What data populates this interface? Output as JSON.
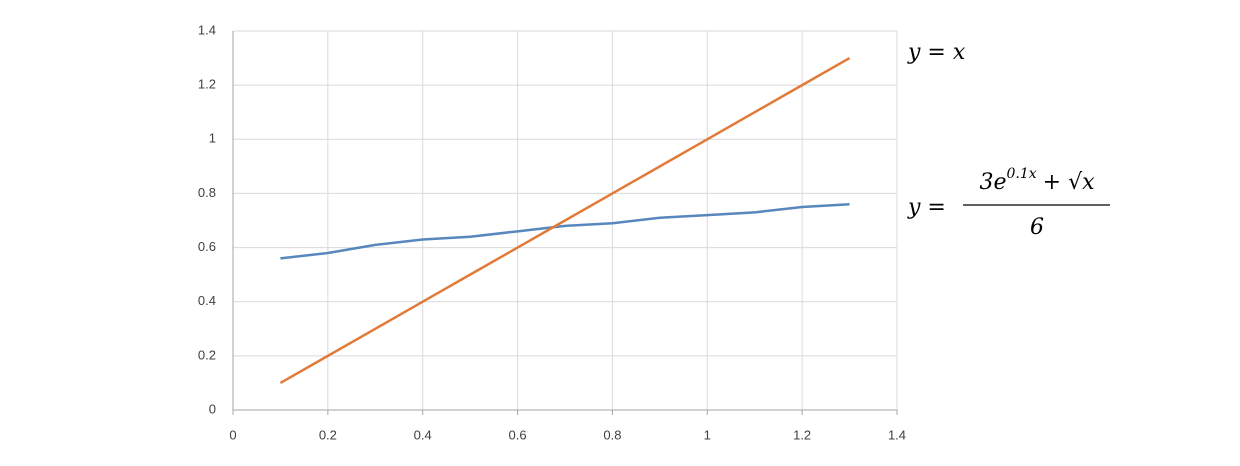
{
  "chart_data": {
    "type": "line",
    "x": [
      0.1,
      0.2,
      0.3,
      0.4,
      0.5,
      0.6,
      0.7,
      0.8,
      0.9,
      1.0,
      1.1,
      1.2,
      1.3
    ],
    "series": [
      {
        "color": "#5887bd",
        "values": [
          0.56,
          0.58,
          0.61,
          0.63,
          0.64,
          0.66,
          0.68,
          0.69,
          0.71,
          0.72,
          0.73,
          0.75,
          0.76
        ]
      },
      {
        "color": "#e07b39",
        "values": [
          0.1,
          0.2,
          0.3,
          0.4,
          0.5,
          0.6,
          0.7,
          0.8,
          0.9,
          1.0,
          1.1,
          1.2,
          1.3
        ]
      }
    ],
    "xlim": [
      0,
      1.4
    ],
    "xticks": [
      0,
      0.2,
      0.4,
      0.6,
      0.8,
      1,
      1.2,
      1.4
    ],
    "ylim": [
      0,
      1.4
    ],
    "yticks": [
      0,
      0.2,
      0.4,
      0.6,
      0.8,
      1,
      1.2,
      1.4
    ],
    "grid": true,
    "annotations": [
      {
        "text": "y = x"
      },
      {
        "lhs": "y =",
        "numerator": {
          "base": "3e",
          "exponent": "0.1x",
          "rest": "+ √x"
        },
        "denominator": "6"
      }
    ]
  }
}
